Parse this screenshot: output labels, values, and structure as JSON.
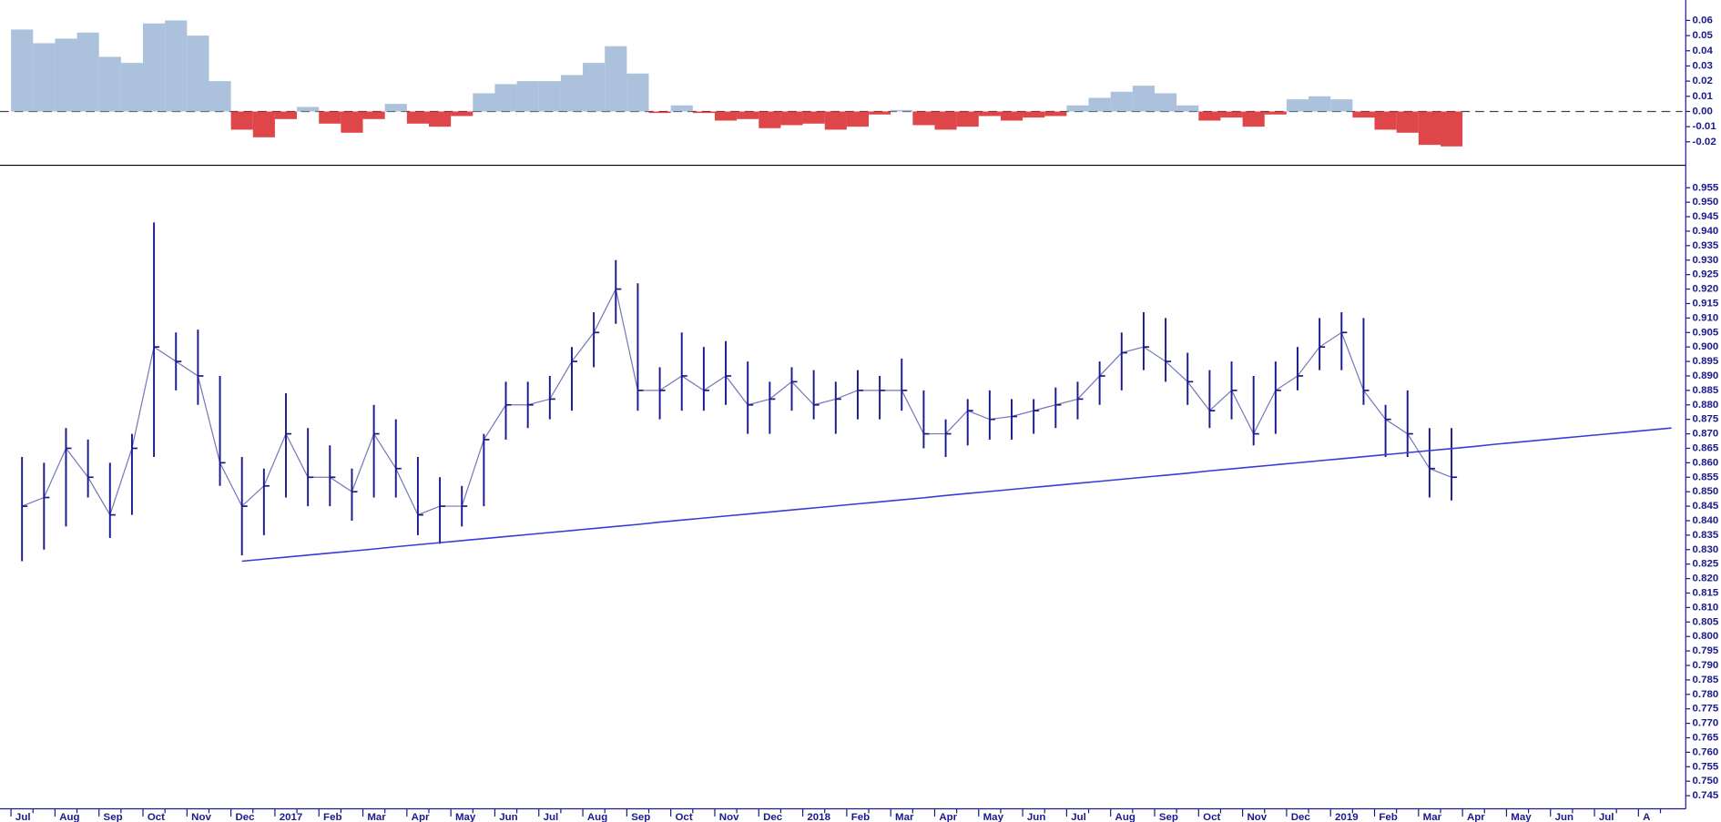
{
  "chart_data": [
    {
      "type": "bar",
      "color_positive": "#9cb6d6",
      "color_negative": "#d9262a",
      "ylim": [
        -0.034,
        0.072
      ],
      "yticks": [
        -0.02,
        -0.01,
        {
          "value": 0,
          "label": "0.00"
        },
        0.01,
        0.02,
        0.03,
        0.04,
        0.05,
        0.06
      ],
      "values": [
        0.054,
        0.045,
        0.048,
        0.052,
        0.036,
        0.032,
        0.058,
        0.06,
        0.05,
        0.02,
        -0.012,
        -0.017,
        -0.005,
        0.003,
        -0.008,
        -0.014,
        -0.005,
        0.005,
        -0.008,
        -0.01,
        -0.003,
        0.012,
        0.018,
        0.02,
        0.02,
        0.024,
        0.032,
        0.043,
        0.025,
        -0.001,
        0.004,
        -0.001,
        -0.006,
        -0.005,
        -0.011,
        -0.009,
        -0.008,
        -0.012,
        -0.01,
        -0.002,
        0.001,
        -0.009,
        -0.012,
        -0.01,
        -0.003,
        -0.006,
        -0.004,
        -0.003,
        0.004,
        0.009,
        0.013,
        0.017,
        0.012,
        0.004,
        -0.006,
        -0.004,
        -0.01,
        -0.002,
        0.008,
        0.01,
        0.008,
        -0.004,
        -0.012,
        -0.014,
        -0.022,
        -0.023,
        null,
        null,
        null,
        null,
        null,
        null,
        null,
        null,
        null,
        null
      ]
    },
    {
      "type": "ohlc",
      "color": "#1a1a8c",
      "trendline_color": "#3a3ad8",
      "ylim": [
        0.742,
        0.962
      ],
      "yticks": [
        0.745,
        {
          "value": 0.75,
          "label": "0.750"
        },
        0.755,
        {
          "value": 0.76,
          "label": "0.760"
        },
        0.765,
        {
          "value": 0.77,
          "label": "0.770"
        },
        0.775,
        {
          "value": 0.78,
          "label": "0.780"
        },
        0.785,
        {
          "value": 0.79,
          "label": "0.790"
        },
        0.795,
        {
          "value": 0.8,
          "label": "0.800"
        },
        0.805,
        {
          "value": 0.81,
          "label": "0.810"
        },
        0.815,
        {
          "value": 0.82,
          "label": "0.820"
        },
        0.825,
        {
          "value": 0.83,
          "label": "0.830"
        },
        0.835,
        {
          "value": 0.84,
          "label": "0.840"
        },
        0.845,
        {
          "value": 0.85,
          "label": "0.850"
        },
        0.855,
        {
          "value": 0.86,
          "label": "0.860"
        },
        0.865,
        {
          "value": 0.87,
          "label": "0.870"
        },
        0.875,
        {
          "value": 0.88,
          "label": "0.880"
        },
        0.885,
        {
          "value": 0.89,
          "label": "0.890"
        },
        0.895,
        {
          "value": 0.9,
          "label": "0.900"
        },
        0.905,
        {
          "value": 0.91,
          "label": "0.910"
        },
        0.915,
        {
          "value": 0.92,
          "label": "0.920"
        },
        0.925,
        {
          "value": 0.93,
          "label": "0.930"
        },
        0.935,
        {
          "value": 0.94,
          "label": "0.940"
        },
        0.945,
        {
          "value": 0.95,
          "label": "0.950"
        },
        0.955
      ],
      "categories": [
        "Jul",
        null,
        "Aug",
        null,
        "Sep",
        null,
        "Oct",
        null,
        "Nov",
        null,
        "Dec",
        null,
        "2017",
        null,
        "Feb",
        null,
        "Mar",
        null,
        "Apr",
        null,
        "May",
        null,
        "Jun",
        null,
        "Jul",
        null,
        "Aug",
        null,
        "Sep",
        null,
        "Oct",
        null,
        "Nov",
        null,
        "Dec",
        null,
        "2018",
        null,
        "Feb",
        null,
        "Mar",
        null,
        "Apr",
        null,
        "May",
        null,
        "Jun",
        null,
        "Jul",
        null,
        "Aug",
        null,
        "Sep",
        null,
        "Oct",
        null,
        "Nov",
        null,
        "Dec",
        null,
        "2019",
        null,
        "Feb",
        null,
        "Mar",
        null,
        "Apr",
        null,
        "May",
        null,
        "Jun",
        null,
        "Jul",
        null,
        "A",
        null
      ],
      "high": [
        0.862,
        0.86,
        0.872,
        0.868,
        0.86,
        0.87,
        0.943,
        0.905,
        0.906,
        0.89,
        0.862,
        0.858,
        0.884,
        0.872,
        0.866,
        0.858,
        0.88,
        0.875,
        0.862,
        0.855,
        0.852,
        0.87,
        0.888,
        0.888,
        0.89,
        0.9,
        0.912,
        0.93,
        0.922,
        0.893,
        0.905,
        0.9,
        0.902,
        0.895,
        0.888,
        0.893,
        0.892,
        0.888,
        0.892,
        0.89,
        0.896,
        0.885,
        0.875,
        0.882,
        0.885,
        0.882,
        0.882,
        0.886,
        0.888,
        0.895,
        0.905,
        0.912,
        0.91,
        0.898,
        0.892,
        0.895,
        0.89,
        0.895,
        0.9,
        0.91,
        0.912,
        0.91,
        0.88,
        0.885,
        0.872,
        0.872,
        null,
        null,
        null,
        null,
        null,
        null,
        null,
        null,
        null,
        null
      ],
      "low": [
        0.826,
        0.83,
        0.838,
        0.848,
        0.834,
        0.842,
        0.862,
        0.885,
        0.88,
        0.852,
        0.828,
        0.835,
        0.848,
        0.845,
        0.845,
        0.84,
        0.848,
        0.848,
        0.835,
        0.832,
        0.838,
        0.845,
        0.868,
        0.872,
        0.875,
        0.878,
        0.893,
        0.908,
        0.878,
        0.875,
        0.878,
        0.878,
        0.88,
        0.87,
        0.87,
        0.878,
        0.875,
        0.87,
        0.875,
        0.875,
        0.878,
        0.865,
        0.862,
        0.866,
        0.868,
        0.868,
        0.87,
        0.872,
        0.875,
        0.88,
        0.885,
        0.892,
        0.888,
        0.88,
        0.872,
        0.875,
        0.866,
        0.87,
        0.885,
        0.892,
        0.892,
        0.88,
        0.862,
        0.862,
        0.848,
        0.847,
        null,
        null,
        null,
        null,
        null,
        null,
        null,
        null,
        null,
        null
      ],
      "close": [
        0.845,
        0.848,
        0.865,
        0.855,
        0.842,
        0.865,
        0.9,
        0.895,
        0.89,
        0.86,
        0.845,
        0.852,
        0.87,
        0.855,
        0.855,
        0.85,
        0.87,
        0.858,
        0.842,
        0.845,
        0.845,
        0.868,
        0.88,
        0.88,
        0.882,
        0.895,
        0.905,
        0.92,
        0.885,
        0.885,
        0.89,
        0.885,
        0.89,
        0.88,
        0.882,
        0.888,
        0.88,
        0.882,
        0.885,
        0.885,
        0.885,
        0.87,
        0.87,
        0.878,
        0.875,
        0.876,
        0.878,
        0.88,
        0.882,
        0.89,
        0.898,
        0.9,
        0.895,
        0.888,
        0.878,
        0.885,
        0.87,
        0.885,
        0.89,
        0.9,
        0.905,
        0.885,
        0.875,
        0.87,
        0.858,
        0.855,
        null,
        null,
        null,
        null,
        null,
        null,
        null,
        null,
        null,
        null
      ],
      "trendline": [
        null,
        null,
        null,
        null,
        null,
        null,
        null,
        null,
        null,
        null,
        0.826,
        0.8267,
        0.8274,
        0.8281,
        0.8288,
        0.8295,
        0.8302,
        0.831,
        0.8317,
        0.8324,
        0.8331,
        0.8338,
        0.8345,
        0.8352,
        0.8359,
        0.8366,
        0.8373,
        0.838,
        0.8387,
        0.8395,
        0.8402,
        0.8409,
        0.8416,
        0.8423,
        0.843,
        0.8437,
        0.8444,
        0.8451,
        0.8458,
        0.8465,
        0.8472,
        0.8479,
        0.8487,
        0.8494,
        0.8501,
        0.8508,
        0.8515,
        0.8522,
        0.8529,
        0.8536,
        0.8543,
        0.855,
        0.8557,
        0.8564,
        0.8572,
        0.8579,
        0.8586,
        0.8593,
        0.86,
        0.8607,
        0.8614,
        0.8621,
        0.8628,
        0.8635,
        0.8642,
        0.8649,
        0.8656,
        0.8664,
        0.8671,
        0.8678,
        0.8685,
        0.8692,
        0.8699,
        0.8706,
        0.8713,
        0.872
      ]
    }
  ]
}
